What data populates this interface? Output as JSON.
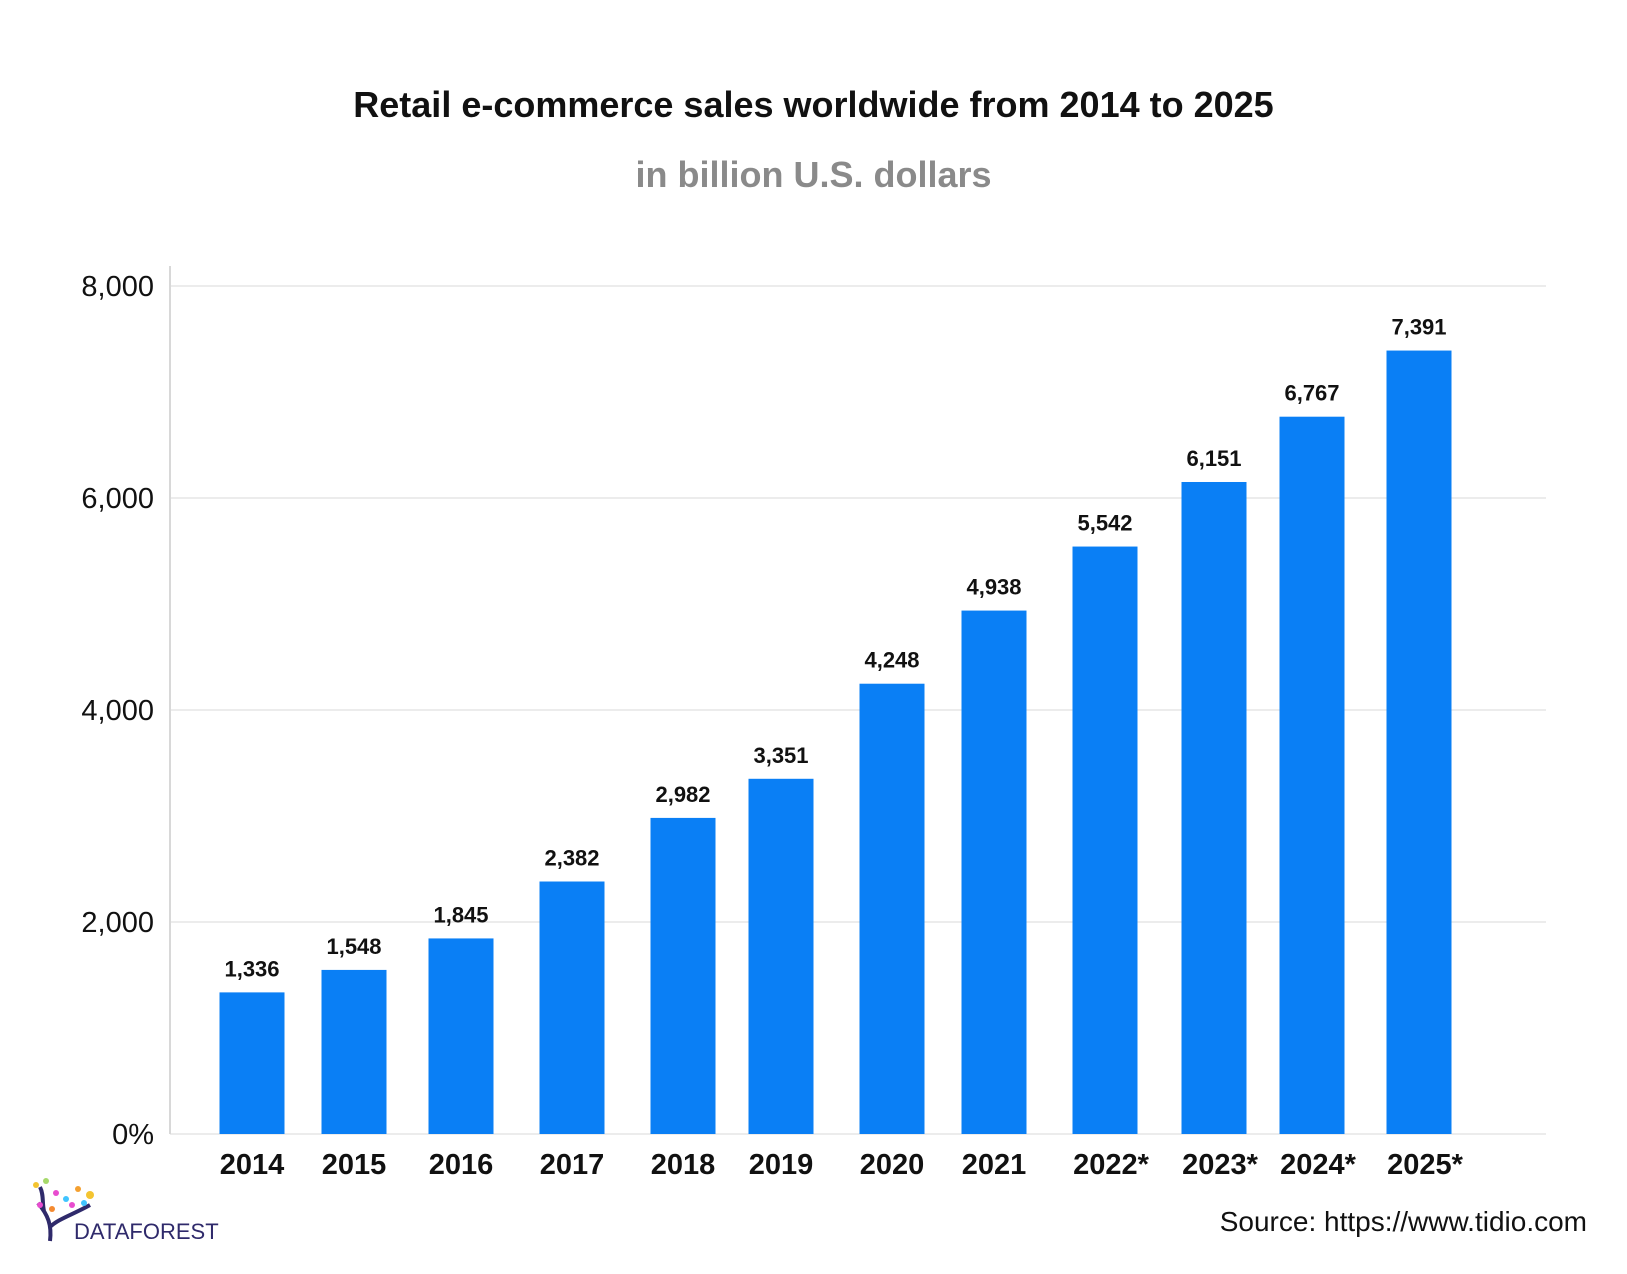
{
  "chart_data": {
    "type": "bar",
    "title": "Retail e-commerce sales worldwide from 2014 to 2025",
    "subtitle": "in billion U.S. dollars",
    "categories": [
      "2014",
      "2015",
      "2016",
      "2017",
      "2018",
      "2019",
      "2020",
      "2021",
      "2022*",
      "2023*",
      "2024*",
      "2025*"
    ],
    "values": [
      1336,
      1548,
      1845,
      2382,
      2982,
      3351,
      4248,
      4938,
      5542,
      6151,
      6767,
      7391
    ],
    "value_labels": [
      "1,336",
      "1,548",
      "1,845",
      "2,382",
      "2,982",
      "3,351",
      "4,248",
      "4,938",
      "5,542",
      "6,151",
      "6,767",
      "7,391"
    ],
    "yticks": [
      0,
      2000,
      4000,
      6000,
      8000
    ],
    "ytick_labels": [
      "0%",
      "2,000",
      "4,000",
      "6,000",
      "8,000"
    ],
    "ylim": [
      0,
      8000
    ],
    "xlabel": "",
    "ylabel": "",
    "grid": true,
    "bar_color": "#0a7ff5"
  },
  "source": "Source: https://www.tidio.com",
  "logo": {
    "text": "DATAFOREST",
    "color": "#2f2a6b"
  }
}
